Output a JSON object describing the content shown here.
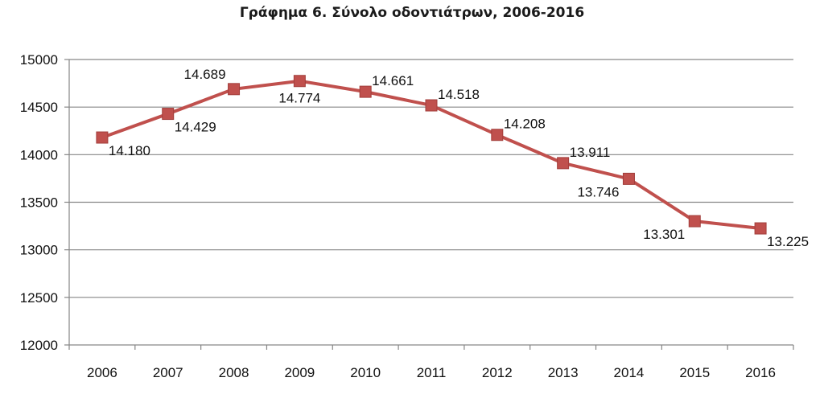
{
  "chart_data": {
    "type": "line",
    "title": "Γράφημα 6. Σύνολο οδοντιάτρων, 2006-2016",
    "xlabel": "",
    "ylabel": "",
    "categories": [
      "2006",
      "2007",
      "2008",
      "2009",
      "2010",
      "2011",
      "2012",
      "2013",
      "2014",
      "2015",
      "2016"
    ],
    "series": [
      {
        "values": [
          14180,
          14429,
          14689,
          14774,
          14661,
          14518,
          14208,
          13911,
          13746,
          13301,
          13225
        ],
        "labels": [
          "14.180",
          "14.429",
          "14.689",
          "14.774",
          "14.661",
          "14.518",
          "14.208",
          "13.911",
          "13.746",
          "13.301",
          "13.225"
        ],
        "color": "#c0504d"
      }
    ],
    "ylim": [
      12000,
      15000
    ],
    "yticks": [
      "12000",
      "12500",
      "13000",
      "13500",
      "14000",
      "14500",
      "15000"
    ],
    "grid": true,
    "gridline_color": "#868686",
    "marker": "square",
    "legend": "none"
  }
}
